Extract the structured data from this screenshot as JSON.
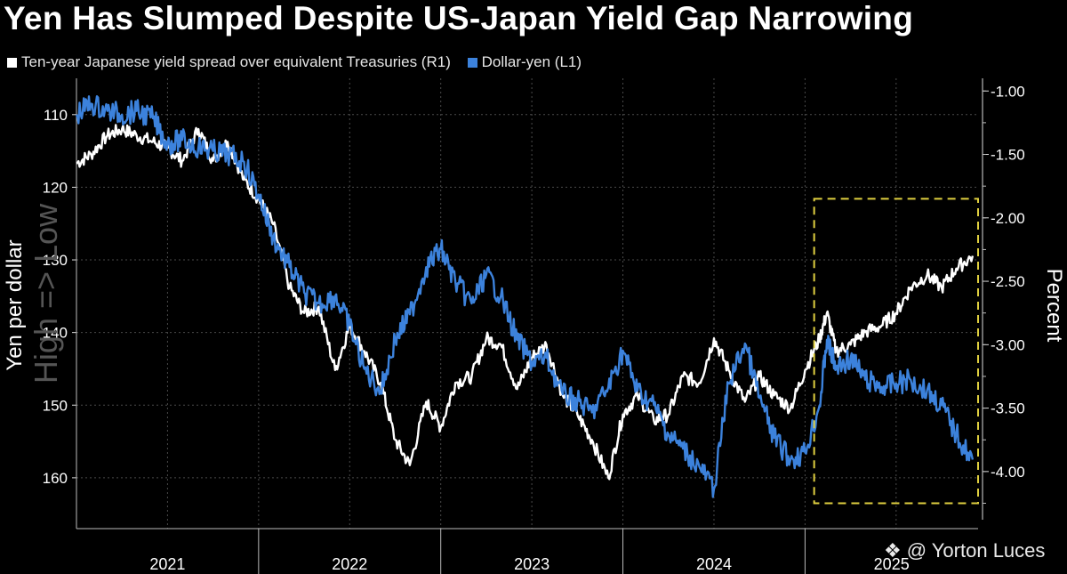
{
  "chart_data": {
    "type": "line",
    "title": "Yen Has Slumped Despite US-Japan Yield Gap Narrowing",
    "left_axis": {
      "label": "Yen per dollar",
      "ticks": [
        110,
        120,
        130,
        140,
        150,
        160
      ],
      "range": [
        105,
        167
      ],
      "inverted": true
    },
    "right_axis": {
      "label": "Percent",
      "ticks": [
        "-1.00",
        "-1.50",
        "-2.00",
        "-2.50",
        "-3.00",
        "-3.50",
        "-4.00"
      ],
      "range": [
        -0.9,
        -4.45
      ]
    },
    "x_categories": [
      "2021",
      "2022",
      "2023",
      "2024",
      "2025"
    ],
    "x_range": [
      2021.0,
      2025.95
    ],
    "watermark": "High => Low",
    "series": [
      {
        "name": "Ten-year Japanese yield spread over equivalent Treasuries (R1)",
        "axis": "right",
        "color": "#ffffff",
        "points": [
          [
            2021.0,
            -1.57
          ],
          [
            2021.08,
            -1.5
          ],
          [
            2021.17,
            -1.35
          ],
          [
            2021.25,
            -1.3
          ],
          [
            2021.33,
            -1.35
          ],
          [
            2021.42,
            -1.4
          ],
          [
            2021.5,
            -1.45
          ],
          [
            2021.58,
            -1.55
          ],
          [
            2021.67,
            -1.3
          ],
          [
            2021.75,
            -1.55
          ],
          [
            2021.83,
            -1.4
          ],
          [
            2021.92,
            -1.7
          ],
          [
            2022.0,
            -1.85
          ],
          [
            2022.08,
            -2.05
          ],
          [
            2022.17,
            -2.55
          ],
          [
            2022.25,
            -2.75
          ],
          [
            2022.33,
            -2.7
          ],
          [
            2022.42,
            -3.2
          ],
          [
            2022.5,
            -2.85
          ],
          [
            2022.58,
            -3.05
          ],
          [
            2022.67,
            -3.3
          ],
          [
            2022.75,
            -3.75
          ],
          [
            2022.83,
            -3.95
          ],
          [
            2022.92,
            -3.45
          ],
          [
            2023.0,
            -3.65
          ],
          [
            2023.08,
            -3.3
          ],
          [
            2023.17,
            -3.25
          ],
          [
            2023.25,
            -2.95
          ],
          [
            2023.33,
            -3.0
          ],
          [
            2023.42,
            -3.35
          ],
          [
            2023.5,
            -3.1
          ],
          [
            2023.58,
            -3.0
          ],
          [
            2023.67,
            -3.4
          ],
          [
            2023.75,
            -3.55
          ],
          [
            2023.83,
            -3.75
          ],
          [
            2023.92,
            -4.05
          ],
          [
            2024.0,
            -3.55
          ],
          [
            2024.08,
            -3.4
          ],
          [
            2024.17,
            -3.6
          ],
          [
            2024.25,
            -3.55
          ],
          [
            2024.33,
            -3.25
          ],
          [
            2024.42,
            -3.3
          ],
          [
            2024.5,
            -2.95
          ],
          [
            2024.58,
            -3.2
          ],
          [
            2024.67,
            -3.45
          ],
          [
            2024.75,
            -3.25
          ],
          [
            2024.83,
            -3.4
          ],
          [
            2024.92,
            -3.5
          ],
          [
            2025.0,
            -3.2
          ],
          [
            2025.08,
            -2.95
          ],
          [
            2025.12,
            -2.75
          ],
          [
            2025.17,
            -3.05
          ],
          [
            2025.25,
            -3.0
          ],
          [
            2025.33,
            -2.9
          ],
          [
            2025.42,
            -2.85
          ],
          [
            2025.5,
            -2.75
          ],
          [
            2025.58,
            -2.55
          ],
          [
            2025.67,
            -2.45
          ],
          [
            2025.75,
            -2.55
          ],
          [
            2025.83,
            -2.4
          ],
          [
            2025.92,
            -2.3
          ]
        ]
      },
      {
        "name": "Dollar-yen (L1)",
        "axis": "left",
        "color": "#3c82dc",
        "points": [
          [
            2021.0,
            110.0
          ],
          [
            2021.08,
            108.5
          ],
          [
            2021.17,
            109.5
          ],
          [
            2021.25,
            110.0
          ],
          [
            2021.33,
            109.5
          ],
          [
            2021.42,
            110.5
          ],
          [
            2021.5,
            114.0
          ],
          [
            2021.58,
            113.5
          ],
          [
            2021.67,
            114.5
          ],
          [
            2021.75,
            115.0
          ],
          [
            2021.83,
            115.5
          ],
          [
            2021.92,
            116.5
          ],
          [
            2022.0,
            121.0
          ],
          [
            2022.08,
            127.0
          ],
          [
            2022.17,
            131.0
          ],
          [
            2022.25,
            134.5
          ],
          [
            2022.33,
            136.0
          ],
          [
            2022.42,
            135.0
          ],
          [
            2022.5,
            139.0
          ],
          [
            2022.58,
            145.0
          ],
          [
            2022.67,
            148.0
          ],
          [
            2022.75,
            141.0
          ],
          [
            2022.83,
            137.5
          ],
          [
            2022.92,
            131.0
          ],
          [
            2023.0,
            128.5
          ],
          [
            2023.08,
            133.0
          ],
          [
            2023.17,
            136.0
          ],
          [
            2023.25,
            132.0
          ],
          [
            2023.33,
            135.0
          ],
          [
            2023.42,
            141.0
          ],
          [
            2023.5,
            144.0
          ],
          [
            2023.58,
            143.5
          ],
          [
            2023.67,
            148.5
          ],
          [
            2023.75,
            149.5
          ],
          [
            2023.83,
            151.0
          ],
          [
            2023.92,
            147.5
          ],
          [
            2024.0,
            142.5
          ],
          [
            2024.08,
            148.0
          ],
          [
            2024.17,
            150.0
          ],
          [
            2024.25,
            154.0
          ],
          [
            2024.33,
            156.0
          ],
          [
            2024.42,
            158.5
          ],
          [
            2024.5,
            161.5
          ],
          [
            2024.58,
            147.0
          ],
          [
            2024.67,
            141.5
          ],
          [
            2024.75,
            149.0
          ],
          [
            2024.83,
            154.5
          ],
          [
            2024.92,
            157.5
          ],
          [
            2025.0,
            156.5
          ],
          [
            2025.08,
            150.0
          ],
          [
            2025.12,
            141.0
          ],
          [
            2025.17,
            145.0
          ],
          [
            2025.25,
            143.5
          ],
          [
            2025.33,
            146.5
          ],
          [
            2025.42,
            147.5
          ],
          [
            2025.5,
            147.0
          ],
          [
            2025.58,
            146.5
          ],
          [
            2025.67,
            148.0
          ],
          [
            2025.75,
            150.0
          ],
          [
            2025.83,
            154.0
          ],
          [
            2025.92,
            157.5
          ]
        ]
      }
    ],
    "annotation": {
      "type": "dashed-box",
      "color": "#e0d040",
      "x_from": 2025.05,
      "x_to": 2025.95,
      "right_from": -1.85,
      "right_to": -4.25
    }
  },
  "credit": {
    "logo": "❖",
    "text": "@ Yorton Luces"
  }
}
